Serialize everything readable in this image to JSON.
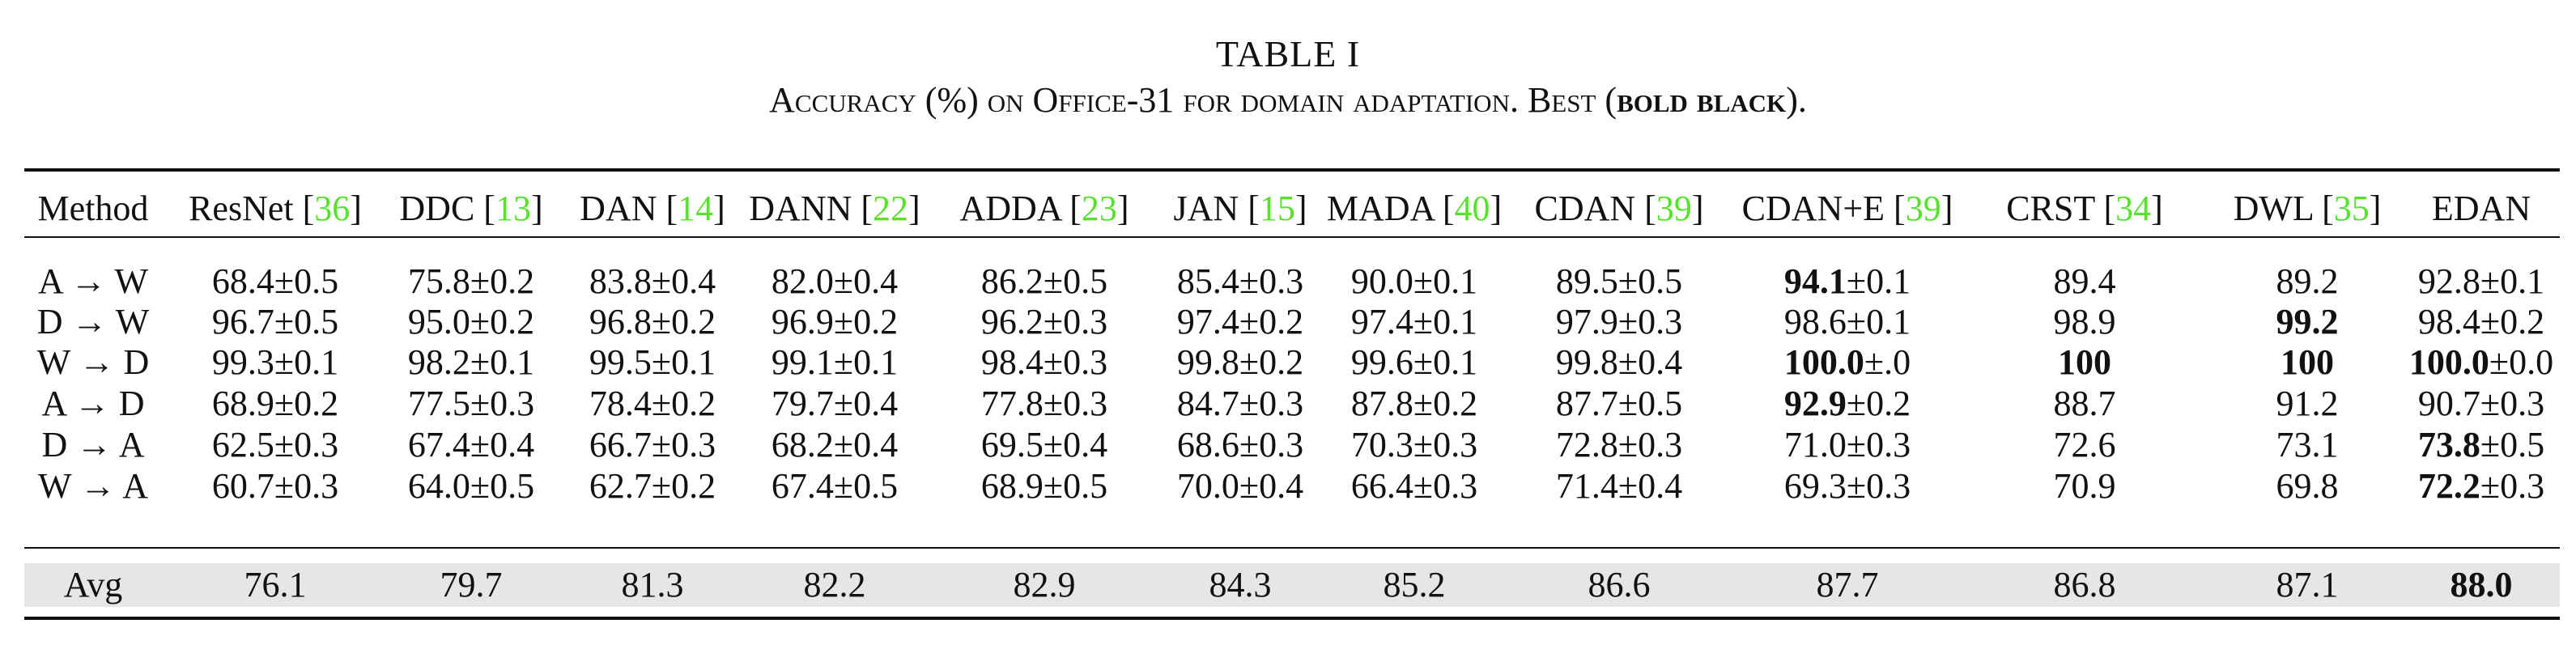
{
  "caption": {
    "table_label": "TABLE I",
    "parts": [
      {
        "text": "Accuracy (%) on Office-31 for domain adaptation. Best (",
        "style": "sc"
      },
      {
        "text": "bold black",
        "style": "sc-bold"
      },
      {
        "text": ").",
        "style": "sc"
      }
    ]
  },
  "table": {
    "headers": [
      {
        "name": "Method",
        "cite": ""
      },
      {
        "name": "ResNet",
        "cite": "36"
      },
      {
        "name": "DDC",
        "cite": "13"
      },
      {
        "name": "DAN",
        "cite": "14"
      },
      {
        "name": "DANN",
        "cite": "22"
      },
      {
        "name": "ADDA",
        "cite": "23"
      },
      {
        "name": "JAN",
        "cite": "15"
      },
      {
        "name": "MADA",
        "cite": "40"
      },
      {
        "name": "CDAN",
        "cite": "39"
      },
      {
        "name": "CDAN+E",
        "cite": "39"
      },
      {
        "name": "CRST",
        "cite": "34"
      },
      {
        "name": "DWL",
        "cite": "35"
      },
      {
        "name": "EDAN",
        "cite": ""
      }
    ],
    "rows": [
      {
        "task": "A → W",
        "cells": [
          {
            "v": "68.4",
            "s": "±0.5",
            "bold": false
          },
          {
            "v": "75.8",
            "s": "±0.2",
            "bold": false
          },
          {
            "v": "83.8",
            "s": "±0.4",
            "bold": false
          },
          {
            "v": "82.0",
            "s": "±0.4",
            "bold": false
          },
          {
            "v": "86.2",
            "s": "±0.5",
            "bold": false
          },
          {
            "v": "85.4",
            "s": "±0.3",
            "bold": false
          },
          {
            "v": "90.0",
            "s": "±0.1",
            "bold": false
          },
          {
            "v": "89.5",
            "s": "±0.5",
            "bold": false
          },
          {
            "v": "94.1",
            "s": "±0.1",
            "bold": true
          },
          {
            "v": "89.4",
            "s": "",
            "bold": false
          },
          {
            "v": "89.2",
            "s": "",
            "bold": false
          },
          {
            "v": "92.8",
            "s": "±0.1",
            "bold": false
          }
        ]
      },
      {
        "task": "D → W",
        "cells": [
          {
            "v": "96.7",
            "s": "±0.5",
            "bold": false
          },
          {
            "v": "95.0",
            "s": "±0.2",
            "bold": false
          },
          {
            "v": "96.8",
            "s": "±0.2",
            "bold": false
          },
          {
            "v": "96.9",
            "s": "±0.2",
            "bold": false
          },
          {
            "v": "96.2",
            "s": "±0.3",
            "bold": false
          },
          {
            "v": "97.4",
            "s": "±0.2",
            "bold": false
          },
          {
            "v": "97.4",
            "s": "±0.1",
            "bold": false
          },
          {
            "v": "97.9",
            "s": "±0.3",
            "bold": false
          },
          {
            "v": "98.6",
            "s": "±0.1",
            "bold": false
          },
          {
            "v": "98.9",
            "s": "",
            "bold": false
          },
          {
            "v": "99.2",
            "s": "",
            "bold": true
          },
          {
            "v": "98.4",
            "s": "±0.2",
            "bold": false
          }
        ]
      },
      {
        "task": "W → D",
        "cells": [
          {
            "v": "99.3",
            "s": "±0.1",
            "bold": false
          },
          {
            "v": "98.2",
            "s": "±0.1",
            "bold": false
          },
          {
            "v": "99.5",
            "s": "±0.1",
            "bold": false
          },
          {
            "v": "99.1",
            "s": "±0.1",
            "bold": false
          },
          {
            "v": "98.4",
            "s": "±0.3",
            "bold": false
          },
          {
            "v": "99.8",
            "s": "±0.2",
            "bold": false
          },
          {
            "v": "99.6",
            "s": "±0.1",
            "bold": false
          },
          {
            "v": "99.8",
            "s": "±0.4",
            "bold": false
          },
          {
            "v": "100.0",
            "s": "±.0",
            "bold": true
          },
          {
            "v": "100",
            "s": "",
            "bold": true
          },
          {
            "v": "100",
            "s": "",
            "bold": true
          },
          {
            "v": "100.0",
            "s": "±0.0",
            "bold": true
          }
        ]
      },
      {
        "task": "A → D",
        "cells": [
          {
            "v": "68.9",
            "s": "±0.2",
            "bold": false
          },
          {
            "v": "77.5",
            "s": "±0.3",
            "bold": false
          },
          {
            "v": "78.4",
            "s": "±0.2",
            "bold": false
          },
          {
            "v": "79.7",
            "s": "±0.4",
            "bold": false
          },
          {
            "v": "77.8",
            "s": "±0.3",
            "bold": false
          },
          {
            "v": "84.7",
            "s": "±0.3",
            "bold": false
          },
          {
            "v": "87.8",
            "s": "±0.2",
            "bold": false
          },
          {
            "v": "87.7",
            "s": "±0.5",
            "bold": false
          },
          {
            "v": "92.9",
            "s": "±0.2",
            "bold": true
          },
          {
            "v": "88.7",
            "s": "",
            "bold": false
          },
          {
            "v": "91.2",
            "s": "",
            "bold": false
          },
          {
            "v": "90.7",
            "s": "±0.3",
            "bold": false
          }
        ]
      },
      {
        "task": "D → A",
        "cells": [
          {
            "v": "62.5",
            "s": "±0.3",
            "bold": false
          },
          {
            "v": "67.4",
            "s": "±0.4",
            "bold": false
          },
          {
            "v": "66.7",
            "s": "±0.3",
            "bold": false
          },
          {
            "v": "68.2",
            "s": "±0.4",
            "bold": false
          },
          {
            "v": "69.5",
            "s": "±0.4",
            "bold": false
          },
          {
            "v": "68.6",
            "s": "±0.3",
            "bold": false
          },
          {
            "v": "70.3",
            "s": "±0.3",
            "bold": false
          },
          {
            "v": "72.8",
            "s": "±0.3",
            "bold": false
          },
          {
            "v": "71.0",
            "s": "±0.3",
            "bold": false
          },
          {
            "v": "72.6",
            "s": "",
            "bold": false
          },
          {
            "v": "73.1",
            "s": "",
            "bold": false
          },
          {
            "v": "73.8",
            "s": "±0.5",
            "bold": true
          }
        ]
      },
      {
        "task": "W → A",
        "cells": [
          {
            "v": "60.7",
            "s": "±0.3",
            "bold": false
          },
          {
            "v": "64.0",
            "s": "±0.5",
            "bold": false
          },
          {
            "v": "62.7",
            "s": "±0.2",
            "bold": false
          },
          {
            "v": "67.4",
            "s": "±0.5",
            "bold": false
          },
          {
            "v": "68.9",
            "s": "±0.5",
            "bold": false
          },
          {
            "v": "70.0",
            "s": "±0.4",
            "bold": false
          },
          {
            "v": "66.4",
            "s": "±0.3",
            "bold": false
          },
          {
            "v": "71.4",
            "s": "±0.4",
            "bold": false
          },
          {
            "v": "69.3",
            "s": "±0.3",
            "bold": false
          },
          {
            "v": "70.9",
            "s": "",
            "bold": false
          },
          {
            "v": "69.8",
            "s": "",
            "bold": false
          },
          {
            "v": "72.2",
            "s": "±0.3",
            "bold": true
          }
        ]
      }
    ],
    "avg": {
      "label": "Avg",
      "cells": [
        {
          "v": "76.1",
          "bold": false
        },
        {
          "v": "79.7",
          "bold": false
        },
        {
          "v": "81.3",
          "bold": false
        },
        {
          "v": "82.2",
          "bold": false
        },
        {
          "v": "82.9",
          "bold": false
        },
        {
          "v": "84.3",
          "bold": false
        },
        {
          "v": "85.2",
          "bold": false
        },
        {
          "v": "86.6",
          "bold": false
        },
        {
          "v": "87.7",
          "bold": false
        },
        {
          "v": "86.8",
          "bold": false
        },
        {
          "v": "87.1",
          "bold": false
        },
        {
          "v": "88.0",
          "bold": true
        }
      ]
    }
  },
  "colors": {
    "citation": "#57e32c",
    "avg_band": "#e6e6e6",
    "rule": "#111111"
  }
}
